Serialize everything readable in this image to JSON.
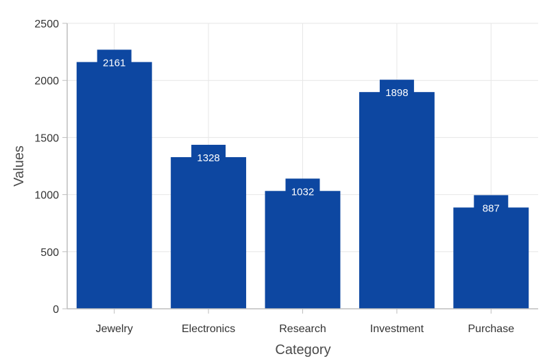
{
  "chart_data": {
    "type": "bar",
    "categories": [
      "Jewelry",
      "Electronics",
      "Research",
      "Investment",
      "Purchase"
    ],
    "values": [
      2161,
      1328,
      1032,
      1898,
      887
    ],
    "data_labels": [
      "2161",
      "1328",
      "1032",
      "1898",
      "887"
    ],
    "xlabel": "Category",
    "ylabel": "Values",
    "ylim": [
      0,
      2500
    ],
    "yticks": [
      "0",
      "500",
      "1000",
      "1500",
      "2000",
      "2500"
    ],
    "ytick_values": [
      0,
      500,
      1000,
      1500,
      2000,
      2500
    ],
    "grid": true,
    "bar_color": "#0D47A1",
    "grid_color": "#E6E6E6",
    "axis_color": "#BDBDBD"
  }
}
